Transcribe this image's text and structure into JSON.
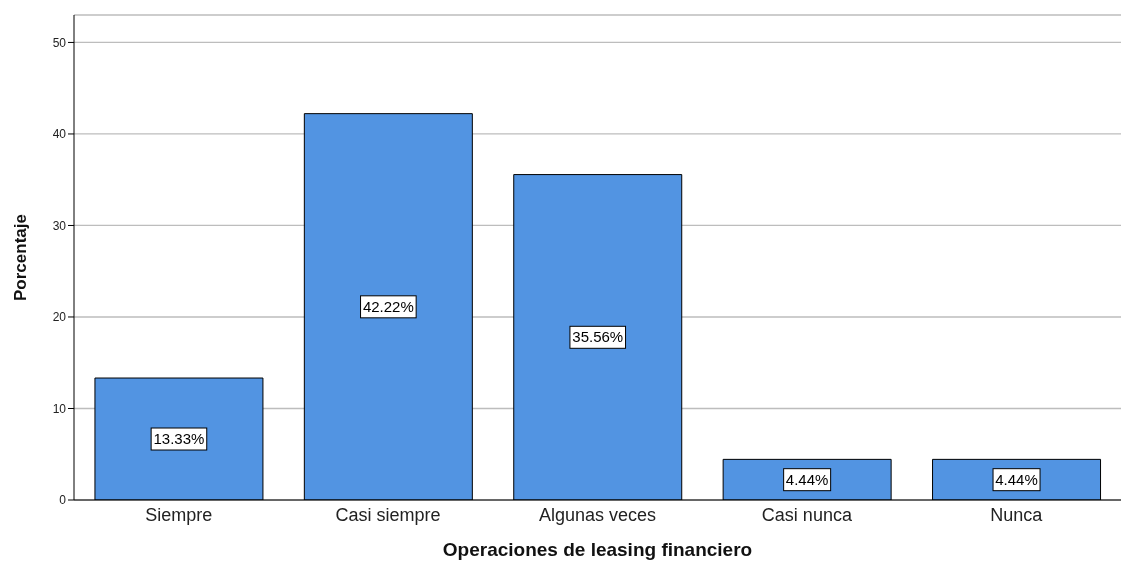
{
  "chart_data": {
    "type": "bar",
    "xlabel": "Operaciones de leasing financiero",
    "ylabel": "Porcentaje",
    "categories": [
      "Siempre",
      "Casi siempre",
      "Algunas veces",
      "Casi nunca",
      "Nunca"
    ],
    "values": [
      13.33,
      42.22,
      35.56,
      4.44,
      4.44
    ],
    "value_labels": [
      "13.33%",
      "42.22%",
      "35.56%",
      "4.44%",
      "4.44%"
    ],
    "color": "#5294e2",
    "ylim": [
      0,
      53
    ],
    "yticks": [
      0,
      10,
      20,
      30,
      40,
      50
    ],
    "grid": "y",
    "legend": false
  }
}
